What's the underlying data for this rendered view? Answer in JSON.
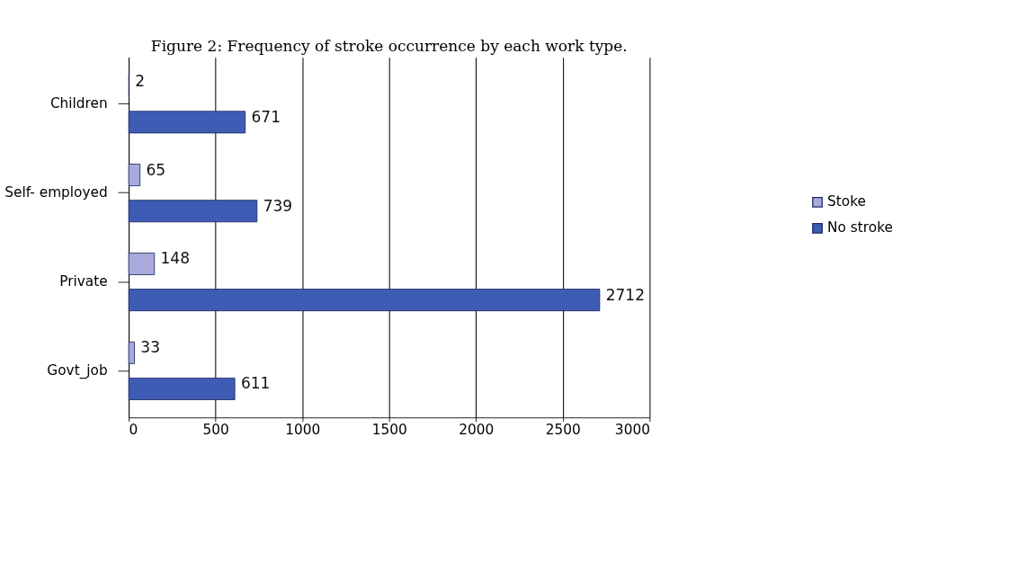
{
  "chart_data": {
    "type": "bar",
    "orientation": "horizontal",
    "title": "Figure 2: Frequency of stroke occurrence by each work type.",
    "categories": [
      "Children",
      "Self- employed",
      "Private",
      "Govt_job"
    ],
    "series": [
      {
        "name": "Stoke",
        "color": "#a9a9dc",
        "values": [
          2,
          65,
          148,
          33
        ]
      },
      {
        "name": "No stroke",
        "color": "#3f5cb4",
        "values": [
          671,
          739,
          2712,
          611
        ]
      }
    ],
    "xlim": [
      0,
      3000
    ],
    "xticks": [
      0,
      500,
      1000,
      1500,
      2000,
      2500,
      3000
    ],
    "grid": "x",
    "legend": "right",
    "data_labels": true
  }
}
